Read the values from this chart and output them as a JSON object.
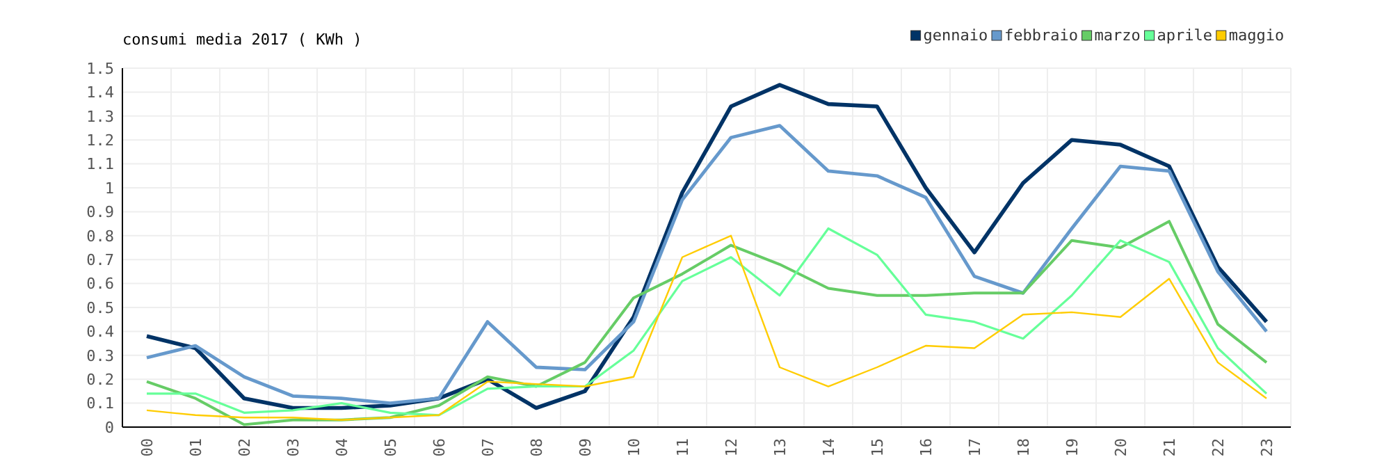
{
  "chart_data": {
    "type": "line",
    "title": "consumi media 2017 ( KWh )",
    "categories": [
      "00",
      "01",
      "02",
      "03",
      "04",
      "05",
      "06",
      "07",
      "08",
      "09",
      "10",
      "11",
      "12",
      "13",
      "14",
      "15",
      "16",
      "17",
      "18",
      "19",
      "20",
      "21",
      "22",
      "23"
    ],
    "series": [
      {
        "name": "gennaio",
        "color": "#003366",
        "values": [
          0.38,
          0.33,
          0.12,
          0.08,
          0.08,
          0.09,
          0.12,
          0.2,
          0.08,
          0.15,
          0.46,
          0.98,
          1.34,
          1.43,
          1.35,
          1.34,
          1.0,
          0.73,
          1.02,
          1.2,
          1.18,
          1.09,
          0.67,
          0.44
        ]
      },
      {
        "name": "febbraio",
        "color": "#6699cc",
        "values": [
          0.29,
          0.34,
          0.21,
          0.13,
          0.12,
          0.1,
          0.12,
          0.44,
          0.25,
          0.24,
          0.44,
          0.95,
          1.21,
          1.26,
          1.07,
          1.05,
          0.96,
          0.63,
          0.56,
          0.83,
          1.09,
          1.07,
          0.65,
          0.4
        ]
      },
      {
        "name": "marzo",
        "color": "#66cc66",
        "values": [
          0.19,
          0.12,
          0.01,
          0.03,
          0.03,
          0.04,
          0.09,
          0.21,
          0.17,
          0.27,
          0.54,
          0.64,
          0.76,
          0.68,
          0.58,
          0.55,
          0.55,
          0.56,
          0.56,
          0.78,
          0.75,
          0.86,
          0.43,
          0.27
        ]
      },
      {
        "name": "aprile",
        "color": "#66ff99",
        "values": [
          0.14,
          0.14,
          0.06,
          0.07,
          0.1,
          0.06,
          0.05,
          0.16,
          0.17,
          0.17,
          0.32,
          0.61,
          0.71,
          0.55,
          0.83,
          0.72,
          0.47,
          0.44,
          0.37,
          0.55,
          0.78,
          0.69,
          0.33,
          0.14
        ]
      },
      {
        "name": "maggio",
        "color": "#ffcc00",
        "values": [
          0.07,
          0.05,
          0.04,
          0.04,
          0.03,
          0.04,
          0.05,
          0.19,
          0.18,
          0.17,
          0.21,
          0.71,
          0.8,
          0.25,
          0.17,
          0.25,
          0.34,
          0.33,
          0.47,
          0.48,
          0.46,
          0.62,
          0.27,
          0.12
        ]
      }
    ],
    "ylim": [
      0,
      1.5
    ],
    "yticks": [
      0,
      0.1,
      0.2,
      0.3,
      0.4,
      0.5,
      0.6,
      0.7,
      0.8,
      0.9,
      1,
      1.1,
      1.2,
      1.3,
      1.4,
      1.5
    ],
    "grid": true,
    "legend": "top right",
    "marker": "none",
    "line_style": "solid"
  }
}
